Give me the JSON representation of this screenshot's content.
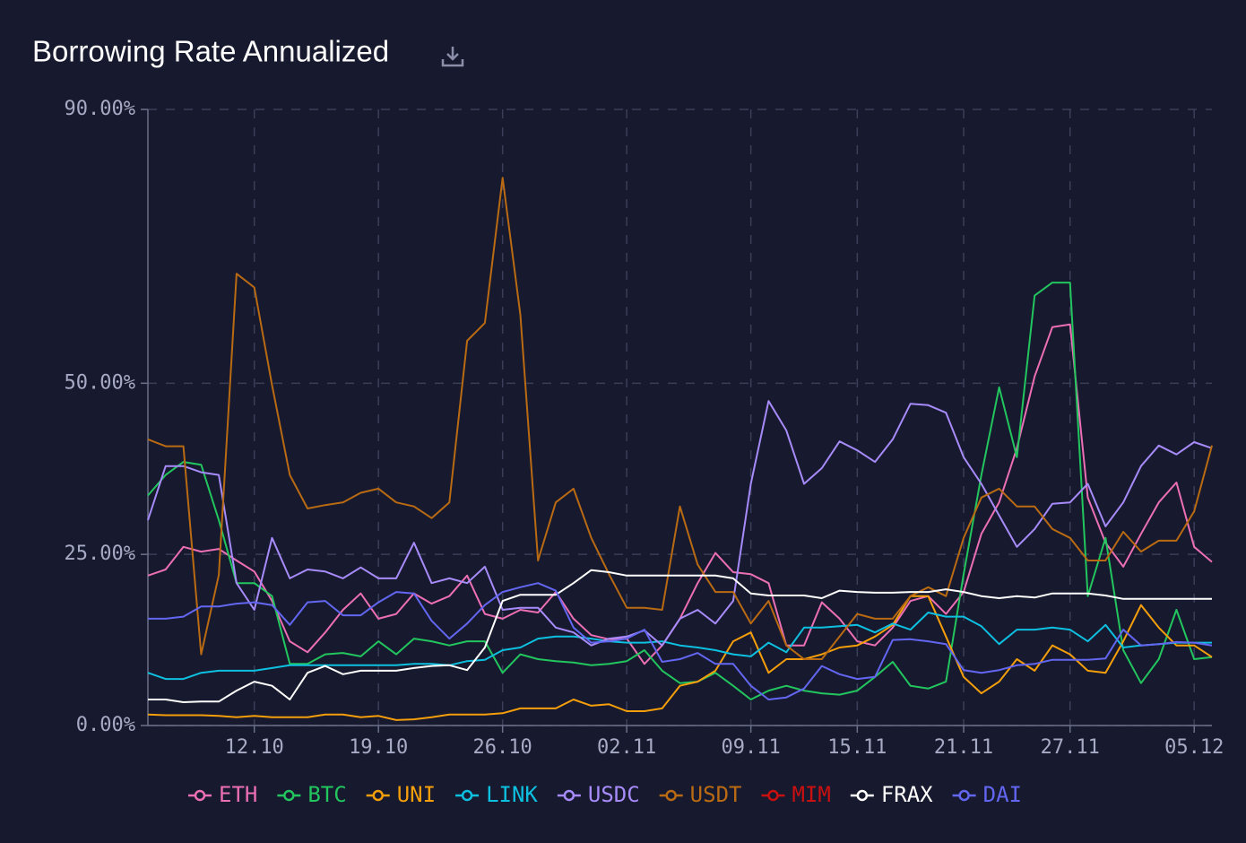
{
  "chart_data": {
    "type": "line",
    "title": "Borrowing Rate Annualized",
    "categories": [
      null,
      null,
      null,
      null,
      null,
      null,
      "12.10",
      null,
      null,
      null,
      null,
      null,
      null,
      "19.10",
      null,
      null,
      null,
      null,
      null,
      null,
      "26.10",
      null,
      null,
      null,
      null,
      null,
      null,
      "02.11",
      null,
      null,
      null,
      null,
      null,
      null,
      "09.11",
      null,
      null,
      null,
      null,
      null,
      "15.11",
      null,
      null,
      null,
      null,
      null,
      "21.11",
      null,
      null,
      null,
      null,
      null,
      "27.11",
      null,
      null,
      null,
      null,
      null,
      null,
      "05.12",
      null
    ],
    "ylim": [
      0,
      90
    ],
    "yticks": [
      {
        "value": 0,
        "label": "0.00%"
      },
      {
        "value": 25,
        "label": "25.00%"
      },
      {
        "value": 50,
        "label": "50.00%"
      },
      {
        "value": 90,
        "label": "90.00%"
      }
    ],
    "grid": true,
    "series": [
      {
        "name": "ETH",
        "color": "#ec6fb5",
        "values": [
          21.9,
          22.8,
          26.1,
          25.4,
          25.8,
          24.1,
          22.5,
          18.2,
          12.3,
          10.7,
          13.6,
          16.9,
          19.3,
          15.6,
          16.3,
          19.3,
          17.8,
          18.9,
          21.9,
          16.3,
          15.6,
          16.9,
          16.5,
          19.5,
          15.6,
          13.2,
          12.6,
          12.7,
          9,
          11.7,
          15.6,
          20.8,
          25.2,
          22.4,
          22.1,
          20.8,
          11.7,
          11.7,
          18,
          15.6,
          12.3,
          11.7,
          14.3,
          18.2,
          18.9,
          16.3,
          19.5,
          28,
          32.6,
          40.5,
          51,
          58.2,
          58.6,
          33.3,
          26.7,
          23.2,
          28,
          32.6,
          35.5,
          26.1,
          23.9
        ]
      },
      {
        "name": "BTC",
        "color": "#22c55e",
        "values": [
          33.6,
          36.6,
          38.5,
          38.1,
          30,
          20.8,
          20.8,
          18.9,
          9,
          9,
          10.4,
          10.6,
          10.1,
          12.3,
          10.4,
          12.7,
          12.3,
          11.7,
          12.3,
          12.3,
          7.7,
          10.4,
          9.7,
          9.4,
          9.2,
          8.8,
          9,
          9.4,
          11,
          8,
          6.2,
          6.4,
          7.7,
          5.8,
          3.8,
          5.1,
          5.8,
          5.1,
          4.7,
          4.5,
          5.1,
          7.1,
          9.3,
          5.8,
          5.4,
          6.4,
          22.1,
          36.6,
          49.4,
          39.2,
          62.8,
          64.7,
          64.7,
          18.9,
          27.4,
          11,
          6.2,
          9.7,
          16.9,
          9.7,
          10
        ]
      },
      {
        "name": "UNI",
        "color": "#f59e0b",
        "values": [
          1.6,
          1.5,
          1.5,
          1.5,
          1.4,
          1.2,
          1.4,
          1.2,
          1.2,
          1.2,
          1.6,
          1.6,
          1.2,
          1.4,
          0.8,
          0.9,
          1.2,
          1.6,
          1.6,
          1.6,
          1.8,
          2.5,
          2.5,
          2.5,
          3.8,
          2.9,
          3.1,
          2.1,
          2.1,
          2.5,
          5.8,
          6.4,
          8,
          12.3,
          13.6,
          7.7,
          9.7,
          9.7,
          10.4,
          11.4,
          11.7,
          13,
          14.7,
          18.9,
          18.9,
          13,
          7.1,
          4.7,
          6.4,
          9.7,
          8,
          11.7,
          10.4,
          8,
          7.7,
          12.3,
          17.6,
          14.3,
          11.7,
          11.7,
          10
        ]
      },
      {
        "name": "LINK",
        "color": "#0ec0e0",
        "values": [
          7.7,
          6.8,
          6.8,
          7.7,
          8,
          8,
          8,
          8.4,
          8.8,
          8.8,
          8.8,
          8.8,
          8.8,
          8.8,
          8.8,
          9,
          9,
          8.8,
          9.4,
          9.6,
          11,
          11.4,
          12.7,
          13,
          13,
          12.7,
          12.3,
          12.1,
          12.1,
          12.3,
          11.7,
          11.4,
          11,
          10.4,
          10.1,
          12.1,
          10.7,
          14.3,
          14.3,
          14.5,
          14.7,
          13.6,
          14.9,
          14,
          16.5,
          15.9,
          15.9,
          14.5,
          11.9,
          14,
          14,
          14.3,
          14,
          12.3,
          14.7,
          11.4,
          11.7,
          11.9,
          12.1,
          12.1,
          12.1
        ]
      },
      {
        "name": "USDC",
        "color": "#a78bfa",
        "values": [
          30,
          37.9,
          37.9,
          37,
          36.6,
          20.8,
          16.9,
          27.4,
          21.5,
          22.8,
          22.5,
          21.5,
          23.1,
          21.5,
          21.5,
          26.7,
          20.8,
          21.5,
          20.8,
          23.2,
          16.9,
          17.2,
          17.2,
          14.3,
          13.6,
          11.7,
          12.7,
          13,
          13.9,
          11.7,
          15.6,
          16.9,
          14.9,
          18.2,
          35.3,
          47.4,
          43.1,
          35.3,
          37.6,
          41.5,
          40.2,
          38.5,
          41.8,
          47,
          46.8,
          45.7,
          39.2,
          35.3,
          30.7,
          26.1,
          28.7,
          32.4,
          32.6,
          35.3,
          29.1,
          32.6,
          37.9,
          40.9,
          39.6,
          41.4,
          40.5
        ]
      },
      {
        "name": "USDT",
        "color": "#b96a12",
        "values": [
          41.8,
          40.8,
          40.8,
          10.4,
          22,
          66,
          64,
          49.7,
          36.6,
          31.7,
          32.2,
          32.6,
          34,
          34.6,
          32.6,
          32,
          30.3,
          32.6,
          56.2,
          58.8,
          80,
          60,
          24.1,
          32.6,
          34.6,
          27.4,
          22.1,
          17.2,
          17.2,
          16.9,
          32,
          23.5,
          19.5,
          19.5,
          14.9,
          18.2,
          11.7,
          9.7,
          9.7,
          13,
          16.3,
          15.6,
          15.6,
          18.9,
          20.2,
          18.9,
          27.4,
          33.3,
          34.6,
          32,
          32,
          28.7,
          27.4,
          24.1,
          24.1,
          28.3,
          25.4,
          27,
          27,
          31.3,
          40.9
        ]
      },
      {
        "name": "MIM",
        "color": "#c81010",
        "values": [
          null,
          null,
          null,
          null,
          null,
          null,
          null,
          null,
          null,
          null,
          null,
          null,
          null,
          null,
          null,
          null,
          null,
          null,
          null,
          null,
          null,
          null,
          null,
          null,
          null,
          null,
          null,
          null,
          null,
          null,
          null,
          null,
          null,
          null,
          null,
          null,
          null,
          null,
          null,
          null,
          null,
          null,
          null,
          null,
          null,
          null,
          null,
          null,
          null,
          null,
          null,
          null,
          null,
          null,
          null,
          null,
          null,
          null,
          null,
          null,
          null
        ]
      },
      {
        "name": "FRAX",
        "color": "#ffffff",
        "values": [
          3.8,
          3.8,
          3.4,
          3.5,
          3.5,
          5.1,
          6.4,
          5.8,
          3.8,
          7.7,
          8.7,
          7.5,
          8,
          8,
          8,
          8.4,
          8.7,
          8.8,
          8.1,
          11.4,
          18.2,
          19.1,
          19.1,
          19.1,
          20.8,
          22.7,
          22.4,
          21.9,
          21.9,
          21.9,
          21.9,
          21.9,
          21.9,
          21.5,
          19.3,
          19,
          19,
          19,
          18.6,
          19.7,
          19.5,
          19.4,
          19.4,
          19.5,
          19.5,
          19.9,
          19.5,
          18.9,
          18.6,
          18.9,
          18.7,
          19.3,
          19.3,
          19.3,
          19,
          18.5,
          18.5,
          18.5,
          18.5,
          18.5,
          18.5
        ]
      },
      {
        "name": "DAI",
        "color": "#6366f1",
        "values": [
          15.6,
          15.6,
          15.9,
          17.4,
          17.4,
          17.8,
          18,
          17.6,
          14.7,
          18,
          18.2,
          16.1,
          16.1,
          18,
          19.5,
          19.3,
          15.3,
          12.7,
          14.9,
          17.6,
          19.5,
          20.2,
          20.8,
          19.7,
          14.3,
          12.1,
          12.3,
          12.7,
          14,
          9.3,
          9.7,
          10.6,
          9,
          9,
          5.8,
          3.8,
          4.1,
          5.4,
          8.7,
          7.5,
          6.8,
          7.1,
          12.5,
          12.6,
          12.3,
          11.9,
          8.1,
          7.7,
          8.1,
          8.8,
          9,
          9.6,
          9.6,
          9.6,
          9.8,
          14,
          11.7,
          11.9,
          12.2,
          12.1,
          11.7
        ]
      }
    ]
  }
}
